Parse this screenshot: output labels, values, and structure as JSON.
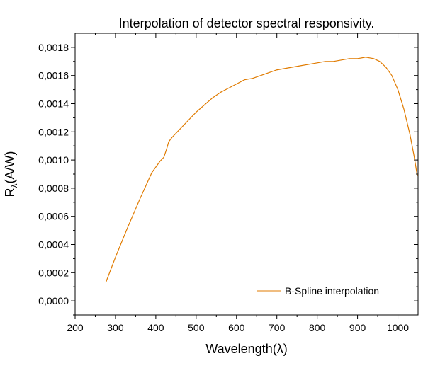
{
  "chart_data": {
    "type": "line",
    "title": "Interpolation of detector spectral responsivity.",
    "xlabel": "Wavelength(λ)",
    "ylabel_main": "R",
    "ylabel_sub": "λ",
    "ylabel_tail": "(A/W)",
    "xlim": [
      200,
      1050
    ],
    "ylim": [
      -0.0001,
      0.0019
    ],
    "x_ticks": [
      200,
      300,
      400,
      500,
      600,
      700,
      800,
      900,
      1000
    ],
    "x_tick_labels": [
      "200",
      "300",
      "400",
      "500",
      "600",
      "700",
      "800",
      "900",
      "1000"
    ],
    "y_ticks": [
      0,
      0.0002,
      0.0004,
      0.0006,
      0.0008,
      0.001,
      0.0012,
      0.0014,
      0.0016,
      0.0018
    ],
    "y_tick_labels": [
      "0,0000",
      "0,0002",
      "0,0004",
      "0,0006",
      "0,0008",
      "0,0010",
      "0,0012",
      "0,0014",
      "0,0016",
      "0,0018"
    ],
    "grid": false,
    "legend_position": "bottom-right",
    "series": [
      {
        "name": "B-Spline interpolation",
        "color": "#e07b00",
        "x": [
          276,
          300,
          330,
          360,
          390,
          410,
          420,
          427,
          432,
          440,
          460,
          480,
          500,
          520,
          540,
          560,
          580,
          600,
          620,
          640,
          660,
          680,
          700,
          720,
          740,
          760,
          780,
          800,
          820,
          840,
          860,
          880,
          900,
          920,
          940,
          955,
          970,
          985,
          1000,
          1015,
          1030,
          1040,
          1048
        ],
        "y": [
          0.00013,
          0.00031,
          0.00052,
          0.00072,
          0.00091,
          0.00099,
          0.00102,
          0.00108,
          0.00113,
          0.00116,
          0.00122,
          0.00128,
          0.00134,
          0.00139,
          0.00144,
          0.00148,
          0.00151,
          0.00154,
          0.00157,
          0.00158,
          0.0016,
          0.00162,
          0.00164,
          0.00165,
          0.00166,
          0.00167,
          0.00168,
          0.00169,
          0.0017,
          0.0017,
          0.00171,
          0.00172,
          0.00172,
          0.00173,
          0.00172,
          0.0017,
          0.00166,
          0.0016,
          0.0015,
          0.00136,
          0.00118,
          0.00103,
          0.00089
        ]
      }
    ]
  }
}
